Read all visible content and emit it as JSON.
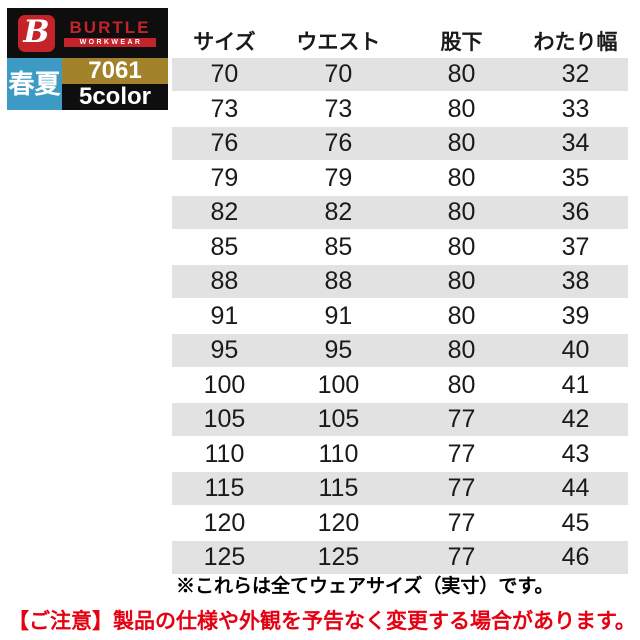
{
  "brand": {
    "b_mark": "B",
    "name": "BURTLE",
    "subtitle": "WORKWEAR",
    "season_badge": "春夏",
    "product_code": "7061",
    "color_count": "5color"
  },
  "table": {
    "headers": [
      "サイズ",
      "ウエスト",
      "股下",
      "わたり幅"
    ],
    "rows": [
      [
        "70",
        "70",
        "80",
        "32"
      ],
      [
        "73",
        "73",
        "80",
        "33"
      ],
      [
        "76",
        "76",
        "80",
        "34"
      ],
      [
        "79",
        "79",
        "80",
        "35"
      ],
      [
        "82",
        "82",
        "80",
        "36"
      ],
      [
        "85",
        "85",
        "80",
        "37"
      ],
      [
        "88",
        "88",
        "80",
        "38"
      ],
      [
        "91",
        "91",
        "80",
        "39"
      ],
      [
        "95",
        "95",
        "80",
        "40"
      ],
      [
        "100",
        "100",
        "80",
        "41"
      ],
      [
        "105",
        "105",
        "77",
        "42"
      ],
      [
        "110",
        "110",
        "77",
        "43"
      ],
      [
        "115",
        "115",
        "77",
        "44"
      ],
      [
        "120",
        "120",
        "77",
        "45"
      ],
      [
        "125",
        "125",
        "77",
        "46"
      ]
    ]
  },
  "footnote": "※これらは全てウェアサイズ（実寸）です。",
  "caution": "【ご注意】製品の仕様や外観を予告なく変更する場合があります。",
  "colors": {
    "logo_black": "#0E0E0E",
    "brand_red": "#C32329",
    "brand_blue": "#3D9AC4",
    "brand_gold": "#A3822C",
    "stripe_gray": "#E2E2E2",
    "caution_red": "#E60012"
  }
}
